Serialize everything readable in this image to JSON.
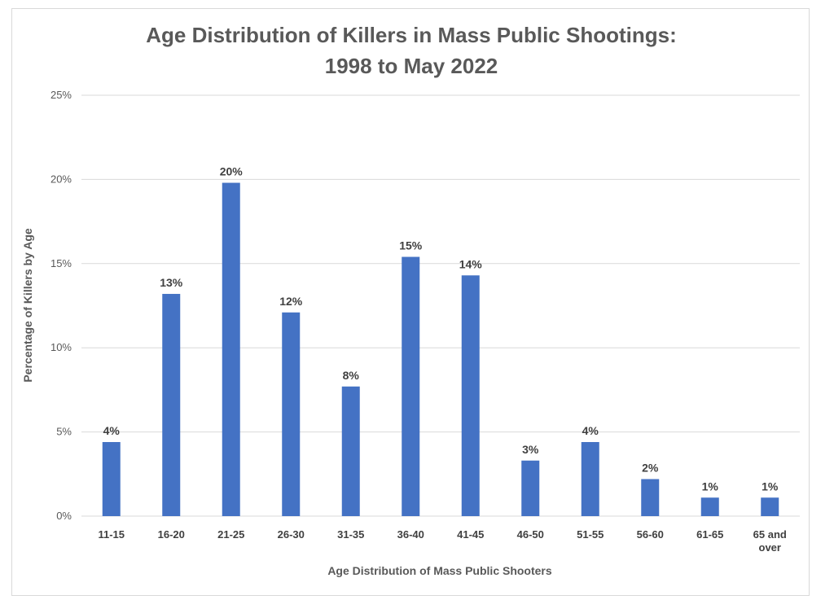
{
  "chart_data": {
    "type": "bar",
    "title_lines": [
      "Age Distribution of Killers in Mass Public Shootings:",
      "1998 to May 2022"
    ],
    "xlabel": "Age Distribution of Mass Public Shooters",
    "ylabel": "Percentage of Killers by Age",
    "categories": [
      [
        "11-15"
      ],
      [
        "16-20"
      ],
      [
        "21-25"
      ],
      [
        "26-30"
      ],
      [
        "31-35"
      ],
      [
        "36-40"
      ],
      [
        "41-45"
      ],
      [
        "46-50"
      ],
      [
        "51-55"
      ],
      [
        "56-60"
      ],
      [
        "61-65"
      ],
      [
        "65 and",
        "over"
      ]
    ],
    "values": [
      4.4,
      13.2,
      19.8,
      12.1,
      7.7,
      15.4,
      14.3,
      3.3,
      4.4,
      2.2,
      1.1,
      1.1
    ],
    "data_labels": [
      "4%",
      "13%",
      "20%",
      "12%",
      "8%",
      "15%",
      "14%",
      "3%",
      "4%",
      "2%",
      "1%",
      "1%"
    ],
    "yticks": [
      "0%",
      "5%",
      "10%",
      "15%",
      "20%",
      "25%"
    ],
    "ylim": [
      0,
      25
    ],
    "grid": true,
    "bar_color": "#4472c4",
    "grid_color": "#d9d9d9"
  }
}
